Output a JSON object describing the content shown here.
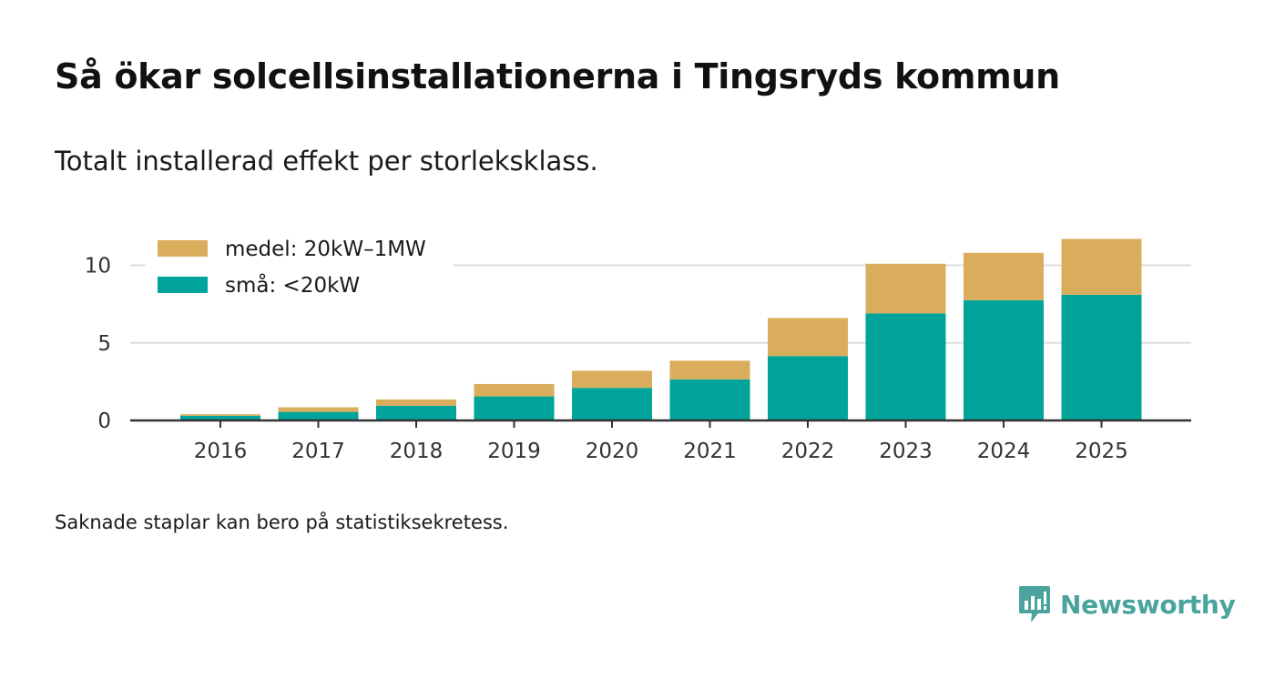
{
  "colors": {
    "small": "#00a49a",
    "medium": "#d9ad5b",
    "grid": "#dddddd",
    "axis": "#333333",
    "brand": "#4aa39c"
  },
  "chart_data": {
    "type": "bar",
    "stacked": true,
    "title": "Så ökar solcellsinstallationerna i Tingsryds kommun",
    "subtitle": "Totalt installerad effekt per storleksklass.",
    "xlabel": "",
    "ylabel": "",
    "ylim": [
      0,
      12
    ],
    "yticks": [
      0,
      5,
      10
    ],
    "grid": true,
    "legend_position": "top-left",
    "categories": [
      "2016",
      "2017",
      "2018",
      "2019",
      "2020",
      "2021",
      "2022",
      "2023",
      "2024",
      "2025"
    ],
    "series": [
      {
        "name": "små: <20kW",
        "color": "#00a49a",
        "values": [
          0.3,
          0.55,
          0.95,
          1.55,
          2.1,
          2.65,
          4.15,
          6.9,
          7.75,
          8.1
        ]
      },
      {
        "name": "medel: 20kW–1MW",
        "color": "#d9ad5b",
        "values": [
          0.1,
          0.3,
          0.4,
          0.8,
          1.1,
          1.2,
          2.45,
          3.2,
          3.05,
          3.6
        ]
      }
    ]
  },
  "footnote": "Saknade staplar kan bero på statistiksekretess.",
  "brand": {
    "name": "Newsworthy",
    "icon": "newsworthy-logo-icon"
  }
}
